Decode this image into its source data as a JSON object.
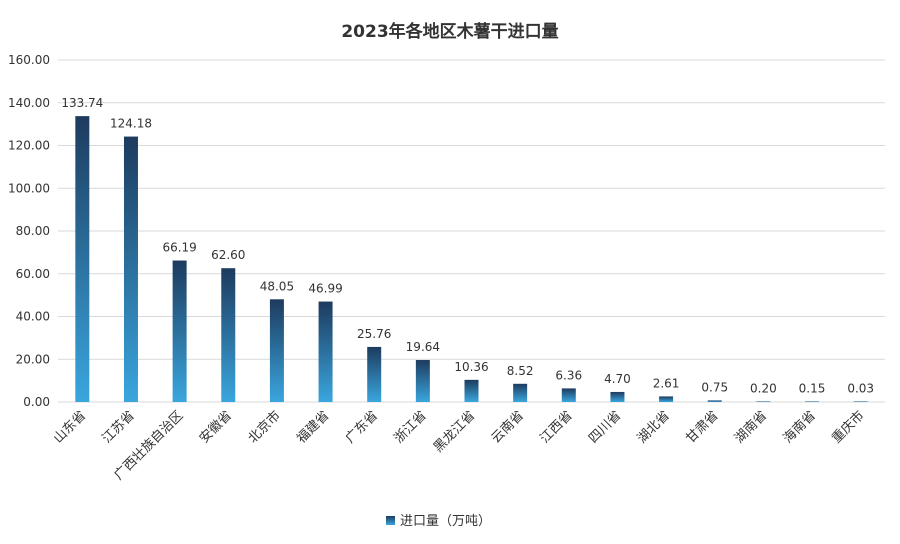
{
  "chart_data": {
    "type": "bar",
    "title": "2023年各地区木薯干进口量",
    "xlabel": "",
    "ylabel": "",
    "ylim": [
      0,
      160
    ],
    "yticks": [
      "0.00",
      "20.00",
      "40.00",
      "60.00",
      "80.00",
      "100.00",
      "120.00",
      "140.00",
      "160.00"
    ],
    "grid": true,
    "legend_position": "bottom",
    "categories": [
      "山东省",
      "江苏省",
      "广西壮族自治区",
      "安徽省",
      "北京市",
      "福建省",
      "广东省",
      "浙江省",
      "黑龙江省",
      "云南省",
      "江西省",
      "四川省",
      "湖北省",
      "甘肃省",
      "湖南省",
      "海南省",
      "重庆市"
    ],
    "series": [
      {
        "name": "进口量（万吨）",
        "values": [
          133.74,
          124.18,
          66.19,
          62.6,
          48.05,
          46.99,
          25.76,
          19.64,
          10.36,
          8.52,
          6.36,
          4.7,
          2.61,
          0.75,
          0.2,
          0.15,
          0.03
        ],
        "labels": [
          "133.74",
          "124.18",
          "66.19",
          "62.60",
          "48.05",
          "46.99",
          "25.76",
          "19.64",
          "10.36",
          "8.52",
          "6.36",
          "4.70",
          "2.61",
          "0.75",
          "0.20",
          "0.15",
          "0.03"
        ]
      }
    ],
    "colors": {
      "bar_top": "#1d3b5e",
      "bar_bottom": "#3aa6de",
      "grid": "#d9d9d9",
      "text": "#333333"
    }
  }
}
